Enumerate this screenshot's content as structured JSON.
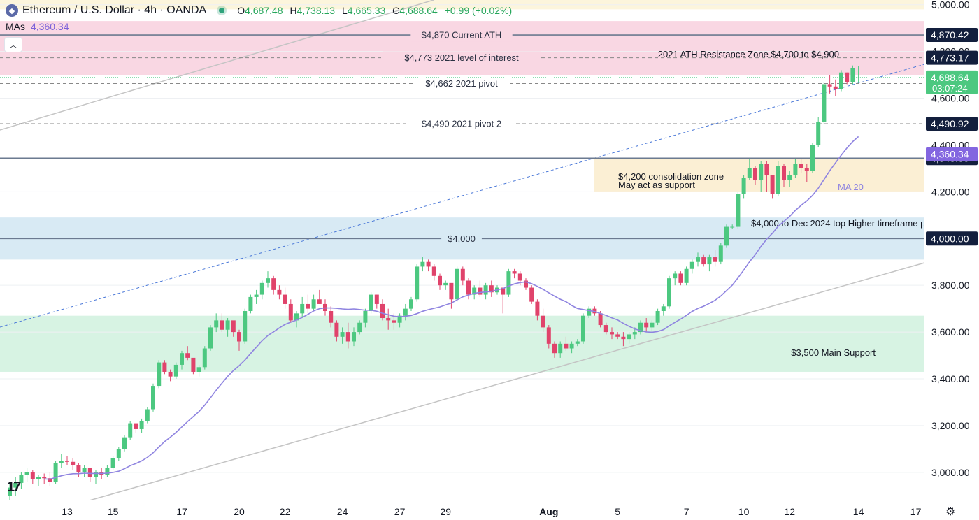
{
  "header": {
    "symbol_title": "Ethereum / U.S. Dollar · 4h · OANDA",
    "ohlc": [
      {
        "key": "O",
        "value": "4,687.48"
      },
      {
        "key": "H",
        "value": "4,738.13"
      },
      {
        "key": "L",
        "value": "4,665.33"
      },
      {
        "key": "C",
        "value": "4,688.64"
      }
    ],
    "change": "+0.99 (+0.02%)",
    "mas_label": "MAs",
    "mas_value": "4,360.34"
  },
  "colors": {
    "up": "#4cc880",
    "down": "#e0436b",
    "ma": "#8f84e0",
    "axis_dark": "#131f3d",
    "ma_badge": "#8366e0",
    "price_badge": "#4cc880"
  },
  "chart_data": {
    "type": "candlestick",
    "title": "Ethereum / U.S. Dollar · 4h · OANDA",
    "y_axis": {
      "min": 2880,
      "max": 5020,
      "ticks": [
        "3,000.00",
        "3,200.00",
        "3,400.00",
        "3,600.00",
        "3,800.00",
        "4,000.00",
        "4,200.00",
        "4,400.00",
        "4,600.00",
        "4,800.00",
        "5,000.00"
      ],
      "tick_values": [
        3000,
        3200,
        3400,
        3600,
        3800,
        4000,
        4200,
        4400,
        4600,
        4800,
        5000
      ]
    },
    "x_axis": {
      "labels": [
        "13",
        "15",
        "17",
        "20",
        "22",
        "24",
        "27",
        "29",
        "Aug",
        "5",
        "7",
        "10",
        "12",
        "14",
        "17"
      ],
      "label_index": [
        10,
        18,
        30,
        40,
        48,
        58,
        68,
        76,
        94,
        106,
        118,
        128,
        136,
        148,
        158
      ]
    },
    "candles_ohlc": [
      [
        2900,
        2960,
        2870,
        2935
      ],
      [
        2935,
        2980,
        2900,
        2955
      ],
      [
        2955,
        3000,
        2930,
        2990
      ],
      [
        2990,
        3020,
        2960,
        3000
      ],
      [
        3000,
        3010,
        2950,
        2970
      ],
      [
        2970,
        2990,
        2940,
        2980
      ],
      [
        2980,
        2995,
        2950,
        2975
      ],
      [
        2975,
        3000,
        2940,
        2960
      ],
      [
        2960,
        3050,
        2950,
        3040
      ],
      [
        3040,
        3080,
        3020,
        3050
      ],
      [
        3050,
        3070,
        3030,
        3045
      ],
      [
        3045,
        3060,
        3010,
        3030
      ],
      [
        3030,
        3040,
        2980,
        3000
      ],
      [
        3000,
        3030,
        2980,
        3020
      ],
      [
        3020,
        3010,
        2960,
        2980
      ],
      [
        2980,
        3010,
        2950,
        3000
      ],
      [
        3000,
        3020,
        2970,
        2990
      ],
      [
        2990,
        3030,
        2980,
        3020
      ],
      [
        3020,
        3070,
        3010,
        3060
      ],
      [
        3060,
        3110,
        3050,
        3100
      ],
      [
        3100,
        3160,
        3090,
        3150
      ],
      [
        3150,
        3220,
        3140,
        3210
      ],
      [
        3210,
        3200,
        3170,
        3185
      ],
      [
        3185,
        3230,
        3170,
        3220
      ],
      [
        3220,
        3280,
        3210,
        3270
      ],
      [
        3270,
        3380,
        3260,
        3370
      ],
      [
        3370,
        3480,
        3360,
        3470
      ],
      [
        3470,
        3480,
        3420,
        3430
      ],
      [
        3430,
        3440,
        3390,
        3410
      ],
      [
        3410,
        3470,
        3400,
        3460
      ],
      [
        3460,
        3520,
        3440,
        3510
      ],
      [
        3510,
        3540,
        3480,
        3490
      ],
      [
        3490,
        3480,
        3420,
        3430
      ],
      [
        3430,
        3460,
        3410,
        3450
      ],
      [
        3450,
        3540,
        3440,
        3530
      ],
      [
        3530,
        3630,
        3520,
        3620
      ],
      [
        3620,
        3680,
        3600,
        3650
      ],
      [
        3650,
        3680,
        3600,
        3610
      ],
      [
        3610,
        3660,
        3580,
        3650
      ],
      [
        3650,
        3640,
        3580,
        3600
      ],
      [
        3600,
        3610,
        3520,
        3560
      ],
      [
        3560,
        3700,
        3550,
        3690
      ],
      [
        3690,
        3760,
        3680,
        3750
      ],
      [
        3750,
        3780,
        3720,
        3760
      ],
      [
        3760,
        3820,
        3740,
        3810
      ],
      [
        3810,
        3860,
        3790,
        3830
      ],
      [
        3830,
        3840,
        3760,
        3780
      ],
      [
        3780,
        3800,
        3740,
        3760
      ],
      [
        3760,
        3790,
        3700,
        3720
      ],
      [
        3720,
        3740,
        3640,
        3650
      ],
      [
        3650,
        3690,
        3620,
        3680
      ],
      [
        3680,
        3750,
        3660,
        3720
      ],
      [
        3720,
        3760,
        3680,
        3700
      ],
      [
        3700,
        3760,
        3690,
        3740
      ],
      [
        3740,
        3780,
        3720,
        3720
      ],
      [
        3720,
        3740,
        3670,
        3690
      ],
      [
        3690,
        3710,
        3620,
        3640
      ],
      [
        3640,
        3650,
        3560,
        3580
      ],
      [
        3580,
        3620,
        3550,
        3600
      ],
      [
        3600,
        3640,
        3530,
        3560
      ],
      [
        3560,
        3620,
        3540,
        3600
      ],
      [
        3600,
        3650,
        3590,
        3640
      ],
      [
        3640,
        3700,
        3620,
        3690
      ],
      [
        3690,
        3770,
        3680,
        3760
      ],
      [
        3760,
        3760,
        3700,
        3720
      ],
      [
        3720,
        3740,
        3650,
        3660
      ],
      [
        3660,
        3700,
        3610,
        3650
      ],
      [
        3650,
        3680,
        3610,
        3640
      ],
      [
        3640,
        3680,
        3620,
        3670
      ],
      [
        3670,
        3720,
        3650,
        3700
      ],
      [
        3700,
        3750,
        3690,
        3740
      ],
      [
        3740,
        3890,
        3730,
        3880
      ],
      [
        3880,
        3920,
        3860,
        3900
      ],
      [
        3900,
        3910,
        3860,
        3880
      ],
      [
        3880,
        3890,
        3820,
        3840
      ],
      [
        3840,
        3850,
        3780,
        3800
      ],
      [
        3800,
        3820,
        3780,
        3810
      ],
      [
        3810,
        3800,
        3700,
        3740
      ],
      [
        3740,
        3880,
        3730,
        3870
      ],
      [
        3870,
        3880,
        3800,
        3820
      ],
      [
        3820,
        3830,
        3740,
        3760
      ],
      [
        3760,
        3800,
        3740,
        3790
      ],
      [
        3790,
        3820,
        3750,
        3760
      ],
      [
        3760,
        3810,
        3740,
        3800
      ],
      [
        3800,
        3820,
        3750,
        3770
      ],
      [
        3770,
        3800,
        3760,
        3790
      ],
      [
        3790,
        3780,
        3680,
        3760
      ],
      [
        3760,
        3870,
        3750,
        3860
      ],
      [
        3860,
        3870,
        3830,
        3850
      ],
      [
        3850,
        3860,
        3800,
        3820
      ],
      [
        3820,
        3830,
        3780,
        3790
      ],
      [
        3790,
        3800,
        3720,
        3730
      ],
      [
        3730,
        3740,
        3650,
        3670
      ],
      [
        3670,
        3700,
        3600,
        3620
      ],
      [
        3620,
        3630,
        3530,
        3550
      ],
      [
        3550,
        3560,
        3490,
        3510
      ],
      [
        3510,
        3560,
        3490,
        3550
      ],
      [
        3550,
        3580,
        3520,
        3530
      ],
      [
        3530,
        3560,
        3510,
        3550
      ],
      [
        3550,
        3570,
        3540,
        3560
      ],
      [
        3560,
        3680,
        3550,
        3670
      ],
      [
        3670,
        3710,
        3660,
        3700
      ],
      [
        3700,
        3710,
        3670,
        3680
      ],
      [
        3680,
        3690,
        3620,
        3630
      ],
      [
        3630,
        3640,
        3590,
        3600
      ],
      [
        3600,
        3620,
        3570,
        3590
      ],
      [
        3590,
        3600,
        3570,
        3580
      ],
      [
        3580,
        3600,
        3540,
        3570
      ],
      [
        3570,
        3600,
        3550,
        3590
      ],
      [
        3590,
        3620,
        3570,
        3600
      ],
      [
        3600,
        3650,
        3590,
        3640
      ],
      [
        3640,
        3660,
        3600,
        3620
      ],
      [
        3620,
        3650,
        3600,
        3640
      ],
      [
        3640,
        3700,
        3630,
        3690
      ],
      [
        3690,
        3720,
        3670,
        3710
      ],
      [
        3710,
        3840,
        3700,
        3830
      ],
      [
        3830,
        3860,
        3800,
        3850
      ],
      [
        3850,
        3860,
        3800,
        3810
      ],
      [
        3810,
        3880,
        3800,
        3870
      ],
      [
        3870,
        3910,
        3850,
        3900
      ],
      [
        3900,
        3940,
        3880,
        3920
      ],
      [
        3920,
        3930,
        3880,
        3890
      ],
      [
        3890,
        3930,
        3860,
        3920
      ],
      [
        3920,
        3950,
        3880,
        3900
      ],
      [
        3900,
        3980,
        3890,
        3970
      ],
      [
        3970,
        4060,
        3960,
        4050
      ],
      [
        4050,
        4060,
        4040,
        4050
      ],
      [
        4050,
        4200,
        4040,
        4190
      ],
      [
        4190,
        4270,
        4170,
        4260
      ],
      [
        4260,
        4340,
        4250,
        4300
      ],
      [
        4300,
        4310,
        4230,
        4250
      ],
      [
        4250,
        4330,
        4200,
        4320
      ],
      [
        4320,
        4330,
        4200,
        4270
      ],
      [
        4270,
        4240,
        4170,
        4190
      ],
      [
        4190,
        4330,
        4180,
        4310
      ],
      [
        4310,
        4320,
        4220,
        4250
      ],
      [
        4250,
        4290,
        4220,
        4270
      ],
      [
        4270,
        4340,
        4260,
        4320
      ],
      [
        4320,
        4340,
        4280,
        4300
      ],
      [
        4300,
        4320,
        4240,
        4290
      ],
      [
        4290,
        4410,
        4280,
        4400
      ],
      [
        4400,
        4520,
        4390,
        4500
      ],
      [
        4500,
        4670,
        4490,
        4660
      ],
      [
        4660,
        4700,
        4620,
        4650
      ],
      [
        4650,
        4680,
        4610,
        4640
      ],
      [
        4640,
        4720,
        4630,
        4710
      ],
      [
        4710,
        4710,
        4660,
        4670
      ],
      [
        4670,
        4740,
        4660,
        4730
      ],
      [
        4687.48,
        4738.13,
        4665.33,
        4688.64
      ]
    ],
    "ma20_label": "MA 20",
    "horizontal_levels": [
      {
        "value": 4870.42,
        "label": "$4,870 Current ATH",
        "badge": "4,870.42",
        "style": "solid"
      },
      {
        "value": 4773.17,
        "label": "$4,773 2021 level of interest",
        "badge": "4,773.17",
        "style": "dashed"
      },
      {
        "value": 4662.72,
        "label": "$4,662 2021 pivot",
        "badge": "4,662.72",
        "style": "dashed"
      },
      {
        "value": 4490.92,
        "label": "$4,490 2021 pivot 2",
        "badge": "4,490.92",
        "style": "dashed"
      },
      {
        "value": 4343.66,
        "label": "",
        "badge": "4,343.66",
        "style": "solid"
      },
      {
        "value": 4000.0,
        "label": "$4,000",
        "badge": "4,000.00",
        "style": "solid"
      }
    ],
    "zones": [
      {
        "from": 4700,
        "to": 4930,
        "label": "2021 ATH Resistance Zone $4,700 to $4,900",
        "color": "#f9d7e3"
      },
      {
        "from": 3910,
        "to": 4090,
        "label": "$4,000 to Dec 2024 top Higher timeframe p",
        "color": "#d8eaf4"
      },
      {
        "from": 3430,
        "to": 3670,
        "label": "$3,500 Main Support",
        "color": "#d7f3e3"
      },
      {
        "from": 4200,
        "to": 4340,
        "label_line1": "$4,200 consolidation zone",
        "label_line2": "May act as support",
        "color": "#fbefd4"
      },
      {
        "from": 4980,
        "to": 5030,
        "label": "",
        "color": "#fcf5dc"
      }
    ],
    "current_price": {
      "value": 4688.64,
      "badge": "4,688.64",
      "countdown": "03:07:24"
    },
    "ma_badge": {
      "value": 4360.34,
      "badge": "4,360.34"
    }
  }
}
